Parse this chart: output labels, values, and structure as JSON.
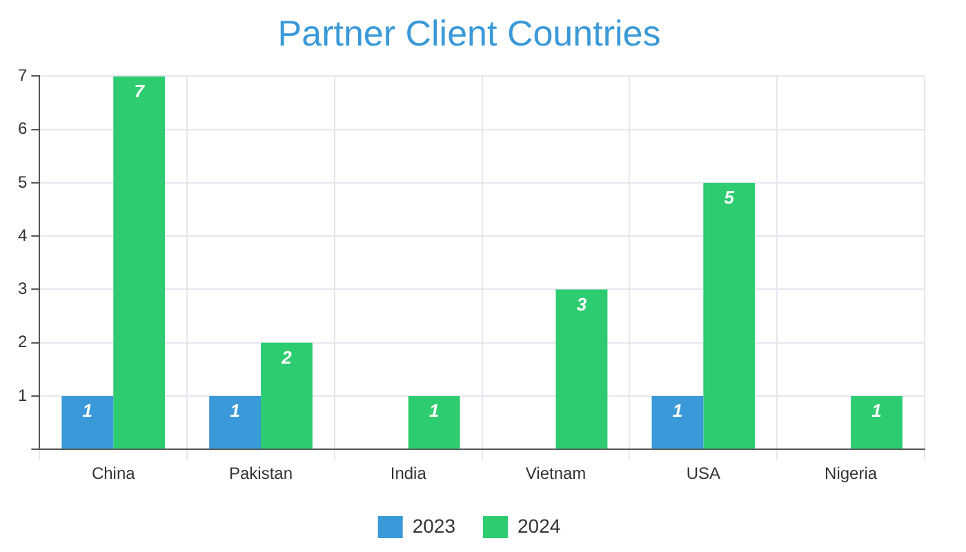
{
  "chart_data": {
    "type": "bar",
    "title": "Partner Client Countries",
    "categories": [
      "China",
      "Pakistan",
      "India",
      "Vietnam",
      "USA",
      "Nigeria"
    ],
    "series": [
      {
        "name": "2023",
        "color": "#3a99d8",
        "values": [
          1,
          1,
          0,
          0,
          1,
          0
        ],
        "value_labels": [
          "1",
          "1",
          null,
          null,
          "1",
          null
        ]
      },
      {
        "name": "2024",
        "color": "#2ecc71",
        "values": [
          7,
          2,
          1,
          3,
          5,
          1
        ],
        "value_labels": [
          "7",
          "2",
          "1",
          "3",
          "5",
          "1"
        ]
      }
    ],
    "ylim": [
      0,
      7
    ],
    "yticks": [
      {
        "value": 0,
        "label": null
      },
      1,
      2,
      3,
      4,
      5,
      6,
      7
    ],
    "grid": true,
    "legend": "bottom"
  }
}
